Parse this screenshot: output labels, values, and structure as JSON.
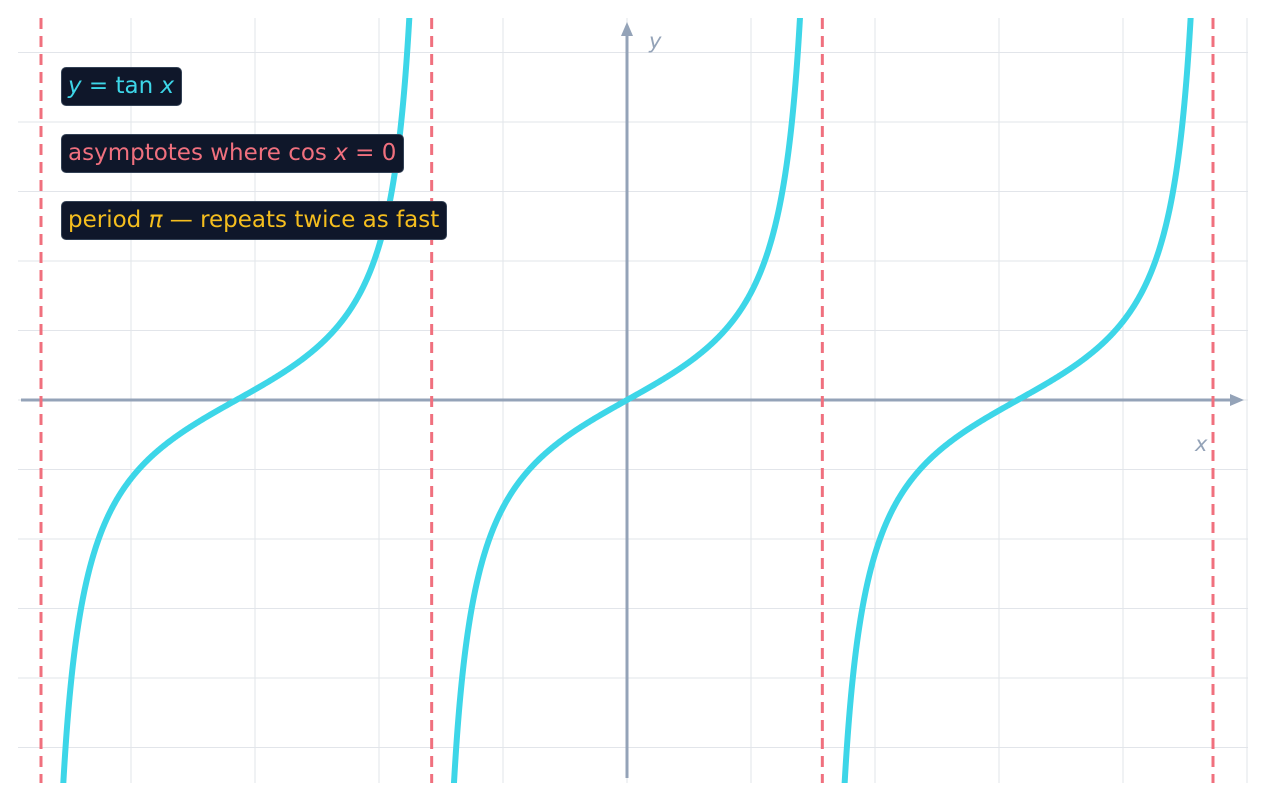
{
  "chart_data": {
    "type": "line",
    "function": "tan",
    "xlim": [
      -4.712389,
      4.712389
    ],
    "ylim": [
      -5.5,
      5.5
    ],
    "grid": true,
    "xlabel": "x",
    "ylabel": "y",
    "asymptotes_x": [
      -4.712389,
      -1.570796,
      1.570796,
      4.712389
    ],
    "period": 3.141593,
    "series": [
      {
        "name": "y = tan x",
        "expression": "tan(x)",
        "domain": [
          -4.712389,
          4.712389
        ]
      }
    ],
    "annotations": [
      {
        "id": "func",
        "parts": [
          [
            "y",
            true
          ],
          [
            " = tan ",
            false
          ],
          [
            "x",
            true
          ]
        ]
      },
      {
        "id": "asym",
        "parts": [
          [
            "asymptotes where cos ",
            false
          ],
          [
            "x",
            true
          ],
          [
            " = 0",
            false
          ]
        ]
      },
      {
        "id": "period",
        "parts": [
          [
            "period ",
            false
          ],
          [
            "π",
            true
          ],
          [
            " — repeats twice as fast",
            false
          ]
        ]
      }
    ]
  },
  "colors": {
    "curve": "#3dd6e8",
    "asymptote": "#f0707e",
    "axis": "#94a3b8",
    "grid": "#e2e5ea",
    "label_bg": "#0f172a",
    "func_text": "#3dd6e8",
    "asym_text": "#f0707e",
    "period_text": "#f5be1e"
  }
}
